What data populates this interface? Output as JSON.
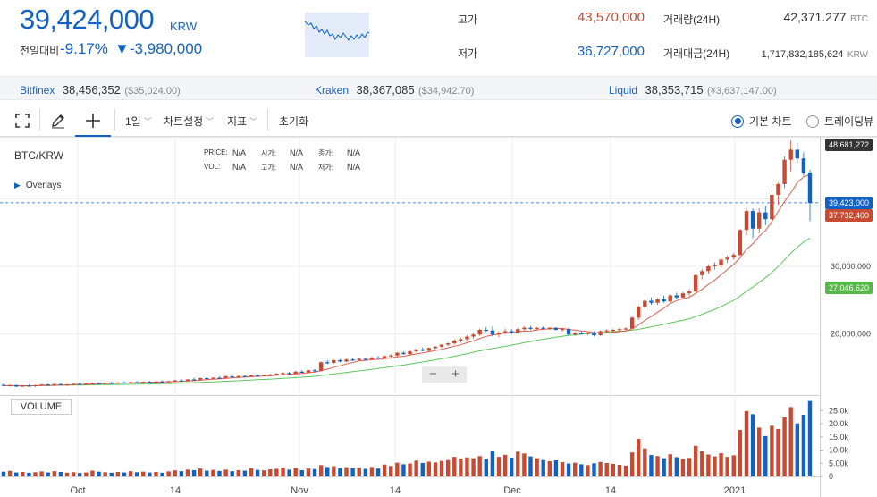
{
  "header": {
    "price": "39,424,000",
    "unit": "KRW",
    "change_label": "전일대비",
    "change_rate": "-9.17%",
    "change_amount": "▼-3,980,000",
    "high_label": "고가",
    "high_value": "43,570,000",
    "low_label": "저가",
    "low_value": "36,727,000",
    "volume_label": "거래량(24H)",
    "volume_value": "42,371.277",
    "volume_unit": "BTC",
    "amount_label": "거래대금(24H)",
    "amount_value": "1,717,832,185,624",
    "amount_unit": "KRW"
  },
  "exchanges": [
    {
      "name": "Bitfinex",
      "value": "38,456,352",
      "sub": "($35,024.00)"
    },
    {
      "name": "Kraken",
      "value": "38,367,085",
      "sub": "($34,942.70)"
    },
    {
      "name": "Liquid",
      "value": "38,353,715",
      "sub": "(¥3,637,147.00)"
    }
  ],
  "toolbar": {
    "period": "1일",
    "chart_settings": "차트설정",
    "indicators": "지표",
    "reset": "초기화",
    "basic_chart": "기본 차트",
    "tradingview": "트레이딩뷰"
  },
  "chart_header": {
    "symbol": "BTC/KRW",
    "overlays": "Overlays",
    "price_label": "PRICE:",
    "price_value": "N/A",
    "open_label": "시가:",
    "open_value": "N/A",
    "close_label": "종가:",
    "close_value": "N/A",
    "vol_label": "VOL:",
    "vol_value": "N/A",
    "high_label": "고가:",
    "high_value": "N/A",
    "low_label": "저가:",
    "low_value": "N/A",
    "volume_button": "VOLUME"
  },
  "price_tags": {
    "max": "48,681,272",
    "current": "39,423,000",
    "ma_short": "37,732,400",
    "ma_long": "27,046,620"
  },
  "colors": {
    "up": "#c84a32",
    "down": "#1261c4",
    "ma_short": "#e25b4f",
    "ma_long": "#5cc85c",
    "max_tag": "#333333",
    "current_tag": "#1261c4",
    "ma_short_tag": "#c84a32",
    "ma_long_tag": "#56b848"
  },
  "chart_data": {
    "type": "candlestick",
    "price_ticks": [
      "30,000,000",
      "20,000,000"
    ],
    "volume_ticks": [
      "25.0k",
      "20.0k",
      "15.0k",
      "10.0k",
      "5.00k",
      "0"
    ],
    "x_ticks": [
      "Oct",
      "14",
      "Nov",
      "14",
      "Dec",
      "14",
      "2021"
    ],
    "candles": [
      {
        "o": 12.45,
        "h": 12.6,
        "l": 12.25,
        "c": 12.3,
        "v": 1.8
      },
      {
        "o": 12.3,
        "h": 12.5,
        "l": 12.2,
        "c": 12.4,
        "v": 2.1
      },
      {
        "o": 12.4,
        "h": 12.5,
        "l": 12.1,
        "c": 12.2,
        "v": 1.5
      },
      {
        "o": 12.2,
        "h": 12.4,
        "l": 12.1,
        "c": 12.35,
        "v": 1.7
      },
      {
        "o": 12.35,
        "h": 12.5,
        "l": 12.2,
        "c": 12.25,
        "v": 1.4
      },
      {
        "o": 12.25,
        "h": 12.45,
        "l": 12.15,
        "c": 12.4,
        "v": 1.6
      },
      {
        "o": 12.4,
        "h": 12.55,
        "l": 12.3,
        "c": 12.5,
        "v": 1.9
      },
      {
        "o": 12.5,
        "h": 12.6,
        "l": 12.35,
        "c": 12.4,
        "v": 1.5
      },
      {
        "o": 12.4,
        "h": 12.6,
        "l": 12.3,
        "c": 12.55,
        "v": 2.0
      },
      {
        "o": 12.55,
        "h": 12.7,
        "l": 12.4,
        "c": 12.45,
        "v": 1.7
      },
      {
        "o": 12.45,
        "h": 12.6,
        "l": 12.35,
        "c": 12.5,
        "v": 1.4
      },
      {
        "o": 12.5,
        "h": 12.65,
        "l": 12.4,
        "c": 12.6,
        "v": 1.6
      },
      {
        "o": 12.6,
        "h": 12.75,
        "l": 12.45,
        "c": 12.5,
        "v": 1.3
      },
      {
        "o": 12.5,
        "h": 12.7,
        "l": 12.45,
        "c": 12.65,
        "v": 1.5
      },
      {
        "o": 12.65,
        "h": 12.8,
        "l": 12.55,
        "c": 12.7,
        "v": 2.2
      },
      {
        "o": 12.7,
        "h": 12.85,
        "l": 12.6,
        "c": 12.65,
        "v": 1.8
      },
      {
        "o": 12.65,
        "h": 12.8,
        "l": 12.55,
        "c": 12.75,
        "v": 1.6
      },
      {
        "o": 12.75,
        "h": 12.9,
        "l": 12.6,
        "c": 12.7,
        "v": 1.4
      },
      {
        "o": 12.7,
        "h": 12.85,
        "l": 12.6,
        "c": 12.8,
        "v": 1.7
      },
      {
        "o": 12.8,
        "h": 12.95,
        "l": 12.7,
        "c": 12.75,
        "v": 1.5
      },
      {
        "o": 12.75,
        "h": 12.9,
        "l": 12.65,
        "c": 12.85,
        "v": 2.0
      },
      {
        "o": 12.85,
        "h": 13.0,
        "l": 12.75,
        "c": 12.8,
        "v": 1.6
      },
      {
        "o": 12.8,
        "h": 12.95,
        "l": 12.7,
        "c": 12.9,
        "v": 1.8
      },
      {
        "o": 12.9,
        "h": 13.05,
        "l": 12.8,
        "c": 12.85,
        "v": 1.5
      },
      {
        "o": 12.85,
        "h": 13.0,
        "l": 12.75,
        "c": 12.95,
        "v": 1.7
      },
      {
        "o": 12.95,
        "h": 13.1,
        "l": 12.85,
        "c": 12.9,
        "v": 1.4
      },
      {
        "o": 12.9,
        "h": 13.05,
        "l": 12.8,
        "c": 13.0,
        "v": 1.9
      },
      {
        "o": 13.0,
        "h": 13.2,
        "l": 12.9,
        "c": 13.1,
        "v": 2.3
      },
      {
        "o": 13.1,
        "h": 13.3,
        "l": 12.95,
        "c": 13.0,
        "v": 2.0
      },
      {
        "o": 13.0,
        "h": 13.3,
        "l": 12.95,
        "c": 13.25,
        "v": 2.6
      },
      {
        "o": 13.25,
        "h": 13.5,
        "l": 13.1,
        "c": 13.2,
        "v": 2.4
      },
      {
        "o": 13.2,
        "h": 13.5,
        "l": 13.1,
        "c": 13.45,
        "v": 3.0
      },
      {
        "o": 13.45,
        "h": 13.6,
        "l": 13.3,
        "c": 13.4,
        "v": 2.2
      },
      {
        "o": 13.4,
        "h": 13.6,
        "l": 13.3,
        "c": 13.5,
        "v": 2.5
      },
      {
        "o": 13.5,
        "h": 13.7,
        "l": 13.4,
        "c": 13.45,
        "v": 2.1
      },
      {
        "o": 13.45,
        "h": 13.8,
        "l": 13.4,
        "c": 13.7,
        "v": 2.6
      },
      {
        "o": 13.7,
        "h": 13.85,
        "l": 13.55,
        "c": 13.6,
        "v": 2.0
      },
      {
        "o": 13.6,
        "h": 13.85,
        "l": 13.5,
        "c": 13.75,
        "v": 2.4
      },
      {
        "o": 13.75,
        "h": 13.9,
        "l": 13.6,
        "c": 13.7,
        "v": 2.2
      },
      {
        "o": 13.7,
        "h": 13.95,
        "l": 13.6,
        "c": 13.85,
        "v": 3.1
      },
      {
        "o": 13.85,
        "h": 14.0,
        "l": 13.7,
        "c": 13.8,
        "v": 2.5
      },
      {
        "o": 13.8,
        "h": 14.0,
        "l": 13.7,
        "c": 13.9,
        "v": 2.3
      },
      {
        "o": 13.9,
        "h": 14.1,
        "l": 13.8,
        "c": 13.95,
        "v": 2.7
      },
      {
        "o": 13.95,
        "h": 14.2,
        "l": 13.85,
        "c": 14.1,
        "v": 2.9
      },
      {
        "o": 14.1,
        "h": 14.3,
        "l": 14.0,
        "c": 14.2,
        "v": 3.4
      },
      {
        "o": 14.2,
        "h": 14.4,
        "l": 14.0,
        "c": 14.1,
        "v": 2.6
      },
      {
        "o": 14.1,
        "h": 14.5,
        "l": 14.0,
        "c": 14.4,
        "v": 3.2
      },
      {
        "o": 14.4,
        "h": 14.6,
        "l": 14.2,
        "c": 14.3,
        "v": 2.4
      },
      {
        "o": 14.3,
        "h": 14.7,
        "l": 14.2,
        "c": 14.6,
        "v": 3.0
      },
      {
        "o": 14.6,
        "h": 14.8,
        "l": 14.4,
        "c": 14.5,
        "v": 2.8
      },
      {
        "o": 14.5,
        "h": 15.9,
        "l": 14.4,
        "c": 15.8,
        "v": 4.3
      },
      {
        "o": 15.8,
        "h": 16.1,
        "l": 15.5,
        "c": 15.7,
        "v": 3.6
      },
      {
        "o": 15.7,
        "h": 16.2,
        "l": 15.6,
        "c": 16.1,
        "v": 3.9
      },
      {
        "o": 16.1,
        "h": 16.3,
        "l": 15.8,
        "c": 15.9,
        "v": 3.2
      },
      {
        "o": 15.9,
        "h": 16.3,
        "l": 15.8,
        "c": 16.2,
        "v": 3.5
      },
      {
        "o": 16.2,
        "h": 16.4,
        "l": 16.0,
        "c": 16.1,
        "v": 3.1
      },
      {
        "o": 16.1,
        "h": 16.4,
        "l": 16.0,
        "c": 16.3,
        "v": 3.3
      },
      {
        "o": 16.3,
        "h": 16.5,
        "l": 16.1,
        "c": 16.2,
        "v": 2.9
      },
      {
        "o": 16.2,
        "h": 16.6,
        "l": 16.1,
        "c": 16.5,
        "v": 3.6
      },
      {
        "o": 16.5,
        "h": 16.7,
        "l": 16.3,
        "c": 16.4,
        "v": 3.0
      },
      {
        "o": 16.4,
        "h": 16.8,
        "l": 16.3,
        "c": 16.7,
        "v": 4.5
      },
      {
        "o": 16.7,
        "h": 17.0,
        "l": 16.5,
        "c": 16.8,
        "v": 4.0
      },
      {
        "o": 16.8,
        "h": 17.3,
        "l": 16.6,
        "c": 17.2,
        "v": 5.2
      },
      {
        "o": 17.2,
        "h": 17.4,
        "l": 16.9,
        "c": 17.0,
        "v": 4.6
      },
      {
        "o": 17.0,
        "h": 17.5,
        "l": 16.9,
        "c": 17.4,
        "v": 4.9
      },
      {
        "o": 17.4,
        "h": 17.8,
        "l": 17.2,
        "c": 17.7,
        "v": 6.0
      },
      {
        "o": 17.7,
        "h": 18.0,
        "l": 17.4,
        "c": 17.5,
        "v": 5.1
      },
      {
        "o": 17.5,
        "h": 18.0,
        "l": 17.4,
        "c": 17.9,
        "v": 5.6
      },
      {
        "o": 17.9,
        "h": 18.2,
        "l": 17.7,
        "c": 18.1,
        "v": 5.3
      },
      {
        "o": 18.1,
        "h": 18.5,
        "l": 17.9,
        "c": 18.4,
        "v": 5.9
      },
      {
        "o": 18.4,
        "h": 18.7,
        "l": 18.2,
        "c": 18.6,
        "v": 6.2
      },
      {
        "o": 18.6,
        "h": 19.2,
        "l": 18.4,
        "c": 19.0,
        "v": 7.4
      },
      {
        "o": 19.0,
        "h": 19.4,
        "l": 18.7,
        "c": 19.2,
        "v": 6.8
      },
      {
        "o": 19.2,
        "h": 19.8,
        "l": 19.0,
        "c": 19.6,
        "v": 7.2
      },
      {
        "o": 19.6,
        "h": 20.1,
        "l": 19.3,
        "c": 19.9,
        "v": 6.9
      },
      {
        "o": 19.9,
        "h": 20.8,
        "l": 19.7,
        "c": 20.6,
        "v": 7.7
      },
      {
        "o": 20.6,
        "h": 21.0,
        "l": 20.3,
        "c": 20.5,
        "v": 6.6
      },
      {
        "o": 20.5,
        "h": 21.1,
        "l": 19.6,
        "c": 19.9,
        "v": 9.8
      },
      {
        "o": 19.9,
        "h": 20.4,
        "l": 19.5,
        "c": 20.2,
        "v": 7.4
      },
      {
        "o": 20.2,
        "h": 20.8,
        "l": 19.9,
        "c": 20.4,
        "v": 8.2
      },
      {
        "o": 20.4,
        "h": 20.7,
        "l": 20.0,
        "c": 20.2,
        "v": 7.1
      },
      {
        "o": 20.2,
        "h": 20.9,
        "l": 20.1,
        "c": 20.7,
        "v": 9.4
      },
      {
        "o": 20.7,
        "h": 21.1,
        "l": 20.5,
        "c": 20.9,
        "v": 8.7
      },
      {
        "o": 20.9,
        "h": 21.2,
        "l": 20.6,
        "c": 20.8,
        "v": 7.6
      },
      {
        "o": 20.8,
        "h": 21.0,
        "l": 20.6,
        "c": 20.9,
        "v": 6.9
      },
      {
        "o": 20.9,
        "h": 21.1,
        "l": 20.7,
        "c": 20.8,
        "v": 6.2
      },
      {
        "o": 20.8,
        "h": 21.0,
        "l": 20.6,
        "c": 20.9,
        "v": 5.8
      },
      {
        "o": 20.9,
        "h": 21.0,
        "l": 20.5,
        "c": 20.6,
        "v": 6.1
      },
      {
        "o": 20.6,
        "h": 20.9,
        "l": 20.4,
        "c": 20.7,
        "v": 5.4
      },
      {
        "o": 20.7,
        "h": 20.9,
        "l": 19.8,
        "c": 19.9,
        "v": 4.9
      },
      {
        "o": 19.9,
        "h": 20.3,
        "l": 19.7,
        "c": 20.1,
        "v": 5.2
      },
      {
        "o": 20.1,
        "h": 20.4,
        "l": 19.9,
        "c": 20.0,
        "v": 4.6
      },
      {
        "o": 20.0,
        "h": 20.3,
        "l": 19.8,
        "c": 20.2,
        "v": 4.3
      },
      {
        "o": 20.2,
        "h": 20.4,
        "l": 19.6,
        "c": 19.8,
        "v": 5.0
      },
      {
        "o": 19.8,
        "h": 20.5,
        "l": 19.7,
        "c": 20.4,
        "v": 5.5
      },
      {
        "o": 20.4,
        "h": 20.7,
        "l": 20.2,
        "c": 20.5,
        "v": 5.1
      },
      {
        "o": 20.5,
        "h": 20.8,
        "l": 20.3,
        "c": 20.6,
        "v": 4.8
      },
      {
        "o": 20.6,
        "h": 20.9,
        "l": 20.4,
        "c": 20.7,
        "v": 4.4
      },
      {
        "o": 20.7,
        "h": 21.0,
        "l": 20.5,
        "c": 20.8,
        "v": 4.1
      },
      {
        "o": 20.8,
        "h": 22.6,
        "l": 20.7,
        "c": 22.4,
        "v": 9.1
      },
      {
        "o": 22.4,
        "h": 24.2,
        "l": 22.1,
        "c": 24.0,
        "v": 14.2
      },
      {
        "o": 24.0,
        "h": 25.2,
        "l": 23.6,
        "c": 24.9,
        "v": 10.6
      },
      {
        "o": 24.9,
        "h": 25.4,
        "l": 24.3,
        "c": 24.6,
        "v": 8.1
      },
      {
        "o": 24.6,
        "h": 25.3,
        "l": 24.3,
        "c": 25.1,
        "v": 7.7
      },
      {
        "o": 25.1,
        "h": 25.6,
        "l": 24.6,
        "c": 24.8,
        "v": 6.9
      },
      {
        "o": 24.8,
        "h": 25.9,
        "l": 24.6,
        "c": 25.7,
        "v": 8.4
      },
      {
        "o": 25.7,
        "h": 26.1,
        "l": 25.1,
        "c": 25.4,
        "v": 7.3
      },
      {
        "o": 25.4,
        "h": 26.2,
        "l": 25.2,
        "c": 26.0,
        "v": 6.6
      },
      {
        "o": 26.0,
        "h": 26.6,
        "l": 25.6,
        "c": 26.3,
        "v": 7.0
      },
      {
        "o": 26.3,
        "h": 28.9,
        "l": 26.1,
        "c": 28.7,
        "v": 11.6
      },
      {
        "o": 28.7,
        "h": 29.6,
        "l": 28.1,
        "c": 29.3,
        "v": 9.5
      },
      {
        "o": 29.3,
        "h": 30.3,
        "l": 28.9,
        "c": 30.0,
        "v": 8.3
      },
      {
        "o": 30.0,
        "h": 30.6,
        "l": 29.5,
        "c": 30.2,
        "v": 7.6
      },
      {
        "o": 30.2,
        "h": 31.2,
        "l": 29.8,
        "c": 31.0,
        "v": 8.8
      },
      {
        "o": 31.0,
        "h": 31.6,
        "l": 30.5,
        "c": 31.3,
        "v": 7.4
      },
      {
        "o": 31.3,
        "h": 32.0,
        "l": 31.0,
        "c": 31.7,
        "v": 8.0
      },
      {
        "o": 31.7,
        "h": 35.6,
        "l": 31.5,
        "c": 35.4,
        "v": 17.6
      },
      {
        "o": 35.4,
        "h": 38.6,
        "l": 34.6,
        "c": 38.2,
        "v": 24.8
      },
      {
        "o": 38.2,
        "h": 38.6,
        "l": 34.2,
        "c": 35.6,
        "v": 23.6
      },
      {
        "o": 35.6,
        "h": 38.6,
        "l": 34.9,
        "c": 38.0,
        "v": 18.5
      },
      {
        "o": 38.0,
        "h": 38.9,
        "l": 36.1,
        "c": 37.0,
        "v": 15.3
      },
      {
        "o": 37.0,
        "h": 41.3,
        "l": 36.6,
        "c": 40.6,
        "v": 19.2
      },
      {
        "o": 40.6,
        "h": 42.4,
        "l": 39.1,
        "c": 42.2,
        "v": 18.0
      },
      {
        "o": 42.2,
        "h": 46.3,
        "l": 41.6,
        "c": 45.8,
        "v": 22.4
      },
      {
        "o": 45.8,
        "h": 48.7,
        "l": 44.1,
        "c": 47.3,
        "v": 26.3
      },
      {
        "o": 47.3,
        "h": 48.3,
        "l": 45.3,
        "c": 46.0,
        "v": 20.1
      },
      {
        "o": 46.0,
        "h": 46.9,
        "l": 43.4,
        "c": 43.9,
        "v": 23.4
      },
      {
        "o": 43.9,
        "h": 44.3,
        "l": 36.7,
        "c": 39.4,
        "v": 28.6
      }
    ]
  }
}
